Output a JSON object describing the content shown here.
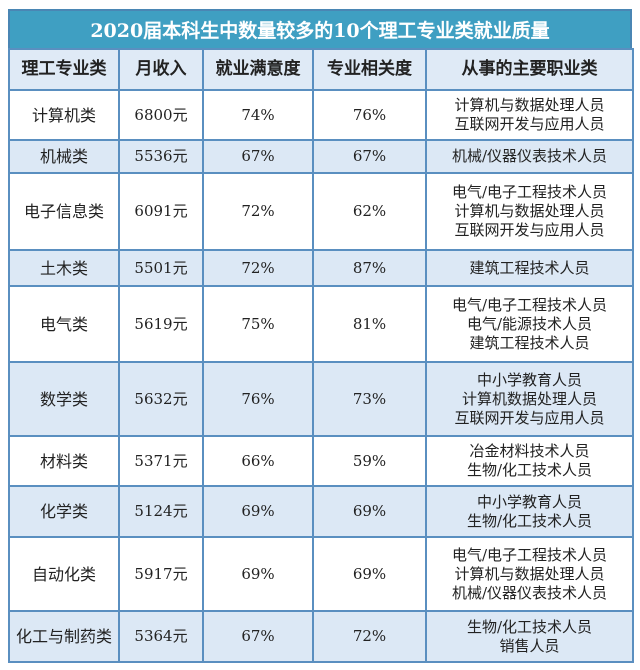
{
  "title": "2020届本科生中数量较多的10个理工专业类就业质量",
  "headers": [
    "理工专业类",
    "月收入",
    "就业满意度",
    "专业相关度",
    "从事的主要职业类"
  ],
  "rows": [
    {
      "major": "计算机类",
      "income": "6800元",
      "satisfaction": "74%",
      "relevance": "76%",
      "jobs": [
        "计算机与数据处理人员",
        "互联网开发与应用人员"
      ]
    },
    {
      "major": "机械类",
      "income": "5536元",
      "satisfaction": "67%",
      "relevance": "67%",
      "jobs": [
        "机械/仪器仪表技术人员"
      ]
    },
    {
      "major": "电子信息类",
      "income": "6091元",
      "satisfaction": "72%",
      "relevance": "62%",
      "jobs": [
        "电气/电子工程技术人员",
        "计算机与数据处理人员",
        "互联网开发与应用人员"
      ]
    },
    {
      "major": "土木类",
      "income": "5501元",
      "satisfaction": "72%",
      "relevance": "87%",
      "jobs": [
        "建筑工程技术人员"
      ]
    },
    {
      "major": "电气类",
      "income": "5619元",
      "satisfaction": "75%",
      "relevance": "81%",
      "jobs": [
        "电气/电子工程技术人员",
        "电气/能源技术人员",
        "建筑工程技术人员"
      ]
    },
    {
      "major": "数学类",
      "income": "5632元",
      "satisfaction": "76%",
      "relevance": "73%",
      "jobs": [
        "中小学教育人员",
        "计算机数据处理人员",
        "互联网开发与应用人员"
      ]
    },
    {
      "major": "材料类",
      "income": "5371元",
      "satisfaction": "66%",
      "relevance": "59%",
      "jobs": [
        "冶金材料技术人员",
        "生物/化工技术人员"
      ]
    },
    {
      "major": "化学类",
      "income": "5124元",
      "satisfaction": "69%",
      "relevance": "69%",
      "jobs": [
        "中小学教育人员",
        "生物/化工技术人员"
      ]
    },
    {
      "major": "自动化类",
      "income": "5917元",
      "satisfaction": "69%",
      "relevance": "69%",
      "jobs": [
        "电气/电子工程技术人员",
        "计算机与数据处理人员",
        "机械/仪器仪表技术人员"
      ]
    },
    {
      "major": "化工与制药类",
      "income": "5364元",
      "satisfaction": "67%",
      "relevance": "72%",
      "jobs": [
        "生物/化工技术人员",
        "销售人员"
      ]
    }
  ],
  "colors": {
    "title_bg": "#3f9fc2",
    "header_bg": "#dfeaf6",
    "alt_row_bg": "#dce8f5",
    "border": "#5a8fc0"
  }
}
